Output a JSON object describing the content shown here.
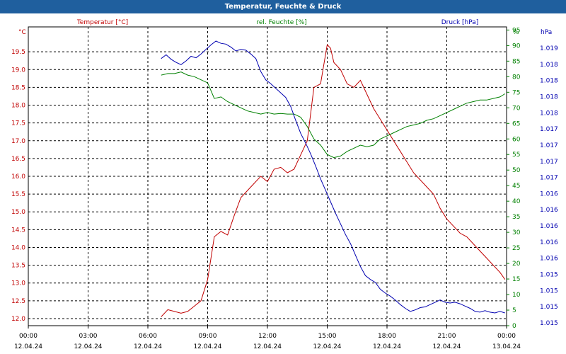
{
  "window": {
    "title": "Temperatur, Feuchte & Druck"
  },
  "colors": {
    "temperature": "#c00000",
    "humidity": "#008000",
    "pressure": "#0000b0",
    "title_bar": "#1f5f9e"
  },
  "chart_data": {
    "type": "line",
    "title": "Temperatur, Feuchte & Druck",
    "grid": true,
    "x_ticks": [
      {
        "time": "00:00",
        "date": "12.04.24"
      },
      {
        "time": "03:00",
        "date": "12.04.24"
      },
      {
        "time": "06:00",
        "date": "12.04.24"
      },
      {
        "time": "09:00",
        "date": "12.04.24"
      },
      {
        "time": "12:00",
        "date": "12.04.24"
      },
      {
        "time": "15:00",
        "date": "12.04.24"
      },
      {
        "time": "18:00",
        "date": "12.04.24"
      },
      {
        "time": "21:00",
        "date": "12.04.24"
      },
      {
        "time": "00:00",
        "date": "13.04.24"
      }
    ],
    "axes": {
      "temperature": {
        "unit": "°C",
        "label": "Temperatur [°C]",
        "ylim": [
          11.8,
          20.2
        ],
        "ticks": [
          "12.0",
          "12.5",
          "13.0",
          "13.5",
          "14.0",
          "14.5",
          "15.0",
          "15.5",
          "16.0",
          "16.5",
          "17.0",
          "17.5",
          "18.0",
          "18.5",
          "19.0",
          "19.5"
        ]
      },
      "humidity": {
        "unit": "%",
        "label": "rel. Feuchte [%]",
        "ylim": [
          0,
          96
        ],
        "ticks": [
          "0",
          "5",
          "10",
          "15",
          "20",
          "25",
          "30",
          "35",
          "40",
          "45",
          "50",
          "55",
          "60",
          "65",
          "70",
          "75",
          "80",
          "85",
          "90",
          "95"
        ]
      },
      "pressure": {
        "unit": "hPa",
        "ticks": [
          "1.015",
          "1.015",
          "1.015",
          "1.015",
          "1.016",
          "1.016",
          "1.016",
          "1.016",
          "1.016",
          "1.017",
          "1.017",
          "1.017",
          "1.017",
          "1.018",
          "1.018",
          "1.018",
          "1.018",
          "1.019"
        ]
      }
    },
    "series": [
      {
        "name": "Temperatur [°C]",
        "axis": "temperature",
        "x": [
          "06:40",
          "07:00",
          "07:20",
          "07:40",
          "08:00",
          "08:20",
          "08:40",
          "09:00",
          "09:20",
          "09:40",
          "10:00",
          "10:20",
          "10:40",
          "11:00",
          "11:20",
          "11:40",
          "12:00",
          "12:20",
          "12:40",
          "13:00",
          "13:20",
          "13:40",
          "14:00",
          "14:20",
          "14:40",
          "15:00",
          "15:10",
          "15:20",
          "15:40",
          "16:00",
          "16:20",
          "16:40",
          "17:00",
          "17:20",
          "17:40",
          "18:00",
          "18:20",
          "18:40",
          "19:00",
          "19:20",
          "19:40",
          "20:00",
          "20:20",
          "20:40",
          "21:00",
          "21:20",
          "21:40",
          "22:00",
          "22:20",
          "22:40",
          "23:00",
          "23:20",
          "23:40",
          "23:55"
        ],
        "values": [
          12.05,
          12.25,
          12.2,
          12.15,
          12.2,
          12.35,
          12.5,
          13.1,
          14.3,
          14.45,
          14.35,
          14.9,
          15.4,
          15.6,
          15.8,
          16.0,
          15.85,
          16.2,
          16.25,
          16.1,
          16.2,
          16.6,
          17.0,
          18.5,
          18.6,
          19.7,
          19.6,
          19.2,
          19.0,
          18.6,
          18.5,
          18.7,
          18.3,
          17.9,
          17.6,
          17.3,
          17.0,
          16.7,
          16.4,
          16.1,
          15.9,
          15.7,
          15.5,
          15.1,
          14.8,
          14.6,
          14.4,
          14.3,
          14.1,
          13.9,
          13.7,
          13.5,
          13.3,
          13.1
        ]
      },
      {
        "name": "rel. Feuchte [%]",
        "axis": "humidity",
        "x": [
          "06:40",
          "07:00",
          "07:20",
          "07:40",
          "08:00",
          "08:20",
          "08:40",
          "09:00",
          "09:20",
          "09:40",
          "10:00",
          "10:20",
          "10:40",
          "11:00",
          "11:20",
          "11:40",
          "12:00",
          "12:20",
          "12:40",
          "13:00",
          "13:20",
          "13:40",
          "14:00",
          "14:20",
          "14:40",
          "15:00",
          "15:20",
          "15:40",
          "16:00",
          "16:20",
          "16:40",
          "17:00",
          "17:20",
          "17:40",
          "18:00",
          "18:20",
          "18:40",
          "19:00",
          "19:20",
          "19:40",
          "20:00",
          "20:20",
          "20:40",
          "21:00",
          "21:20",
          "21:40",
          "22:00",
          "22:20",
          "22:40",
          "23:00",
          "23:20",
          "23:40",
          "23:55"
        ],
        "values": [
          80.5,
          81,
          81,
          81.5,
          80.5,
          80,
          79,
          78,
          73,
          73.5,
          72,
          71,
          70,
          69,
          68.5,
          68,
          68.5,
          68,
          68.2,
          68,
          68,
          67,
          64,
          60,
          58,
          55,
          54,
          54.5,
          56,
          57,
          58,
          57.5,
          58,
          60,
          61,
          62,
          63,
          64,
          64.5,
          65,
          66,
          66.5,
          67.5,
          68.5,
          69.5,
          70.5,
          71.5,
          72,
          72.5,
          72.5,
          73,
          73.5,
          74.5
        ]
      },
      {
        "name": "Druck [hPa]",
        "axis": "pressure",
        "x": [
          "06:40",
          "06:55",
          "07:10",
          "07:25",
          "07:40",
          "07:55",
          "08:10",
          "08:25",
          "08:40",
          "08:55",
          "09:10",
          "09:25",
          "09:40",
          "09:55",
          "10:10",
          "10:25",
          "10:40",
          "10:55",
          "11:10",
          "11:25",
          "11:40",
          "11:55",
          "12:10",
          "12:25",
          "12:40",
          "12:55",
          "13:10",
          "13:25",
          "13:40",
          "13:55",
          "14:10",
          "14:25",
          "14:40",
          "14:55",
          "15:10",
          "15:25",
          "15:40",
          "15:55",
          "16:10",
          "16:25",
          "16:40",
          "16:55",
          "17:10",
          "17:25",
          "17:40",
          "17:55",
          "18:10",
          "18:25",
          "18:40",
          "18:55",
          "19:10",
          "19:25",
          "19:40",
          "19:55",
          "20:10",
          "20:25",
          "20:40",
          "20:55",
          "21:10",
          "21:25",
          "21:40",
          "21:55",
          "22:10",
          "22:25",
          "22:40",
          "22:55",
          "23:10",
          "23:25",
          "23:40",
          "23:55"
        ],
        "values": [
          1.01883,
          1.01888,
          1.01882,
          1.01878,
          1.01875,
          1.0188,
          1.01886,
          1.01884,
          1.01889,
          1.01895,
          1.01901,
          1.01906,
          1.01903,
          1.01902,
          1.01898,
          1.01893,
          1.01895,
          1.01894,
          1.01889,
          1.01883,
          1.01866,
          1.01855,
          1.0185,
          1.01844,
          1.01838,
          1.01832,
          1.0182,
          1.01802,
          1.01785,
          1.01772,
          1.01758,
          1.01742,
          1.01725,
          1.0171,
          1.01695,
          1.0168,
          1.01666,
          1.01652,
          1.0164,
          1.01625,
          1.0161,
          1.01598,
          1.01593,
          1.01589,
          1.0158,
          1.01575,
          1.01571,
          1.01566,
          1.0156,
          1.01555,
          1.01551,
          1.01553,
          1.01556,
          1.01557,
          1.0156,
          1.01563,
          1.01566,
          1.01563,
          1.01562,
          1.01563,
          1.01561,
          1.01558,
          1.01555,
          1.01551,
          1.0155,
          1.01552,
          1.0155,
          1.01549,
          1.01551,
          1.01549
        ]
      }
    ]
  }
}
